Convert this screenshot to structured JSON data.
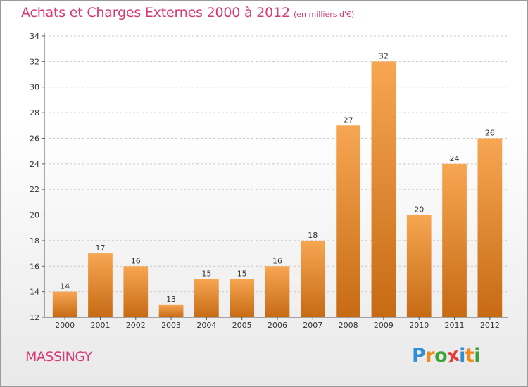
{
  "header": {
    "title": "Achats et Charges Externes 2000 à 2012",
    "subtitle": "(en milliers d'€)"
  },
  "footer": {
    "commune": "MASSINGY",
    "logo_letters": [
      "P",
      "r",
      "o",
      "x",
      "i",
      "t",
      "i"
    ],
    "logo_colors": [
      "#2f8fd6",
      "#f08a1c",
      "#3aa33a",
      "#e23c3c",
      "#2f8fd6",
      "#f08a1c",
      "#3aa33a"
    ]
  },
  "colors": {
    "bar_top": "#f7a652",
    "bar_bottom": "#c76a14",
    "accent": "#d63a72",
    "axis": "#555555",
    "grid": "#c8c8c8"
  },
  "chart_data": {
    "type": "bar",
    "categories": [
      "2000",
      "2001",
      "2002",
      "2003",
      "2004",
      "2005",
      "2006",
      "2007",
      "2008",
      "2009",
      "2010",
      "2011",
      "2012"
    ],
    "values": [
      14,
      17,
      16,
      13,
      15,
      15,
      16,
      18,
      27,
      32,
      20,
      24,
      26
    ],
    "title": "Achats et Charges Externes 2000 à 2012",
    "unit": "(en milliers d'€)",
    "xlabel": "",
    "ylabel": "",
    "ylim": [
      12,
      34
    ],
    "yticks": [
      12,
      14,
      16,
      18,
      20,
      22,
      24,
      26,
      28,
      30,
      32,
      34
    ],
    "grid": "horizontal dashed",
    "legend": "none"
  }
}
